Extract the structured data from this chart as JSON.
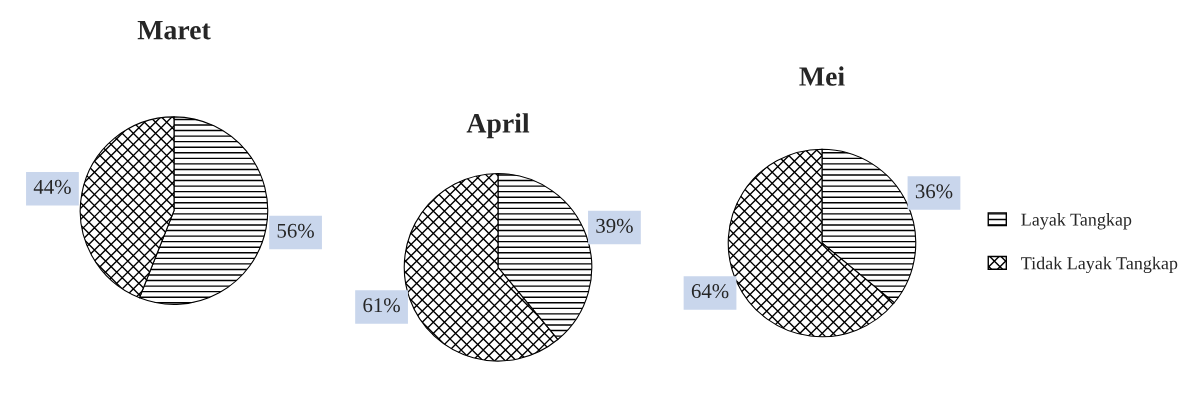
{
  "chart_data": [
    {
      "type": "pie",
      "title": "Maret",
      "categories": [
        null,
        null
      ],
      "values": [
        56,
        44
      ],
      "colors": [
        "#000000",
        "#000000"
      ],
      "value_labels": [
        "56%",
        "44%"
      ]
    },
    {
      "type": "pie",
      "title": "April",
      "categories": [
        null,
        null
      ],
      "values": [
        39,
        61
      ],
      "colors": [
        "#000000",
        "#000000"
      ],
      "value_labels": [
        "39%",
        "61%"
      ]
    },
    {
      "type": "pie",
      "title": "Mei",
      "categories": [
        "Layak Tangkap",
        "Tidak Layak Tangkap"
      ],
      "values": [
        36,
        64
      ],
      "colors": [
        "#000000",
        "#000000"
      ],
      "value_labels": [
        "36%",
        "64%"
      ],
      "legend": "right"
    }
  ]
}
